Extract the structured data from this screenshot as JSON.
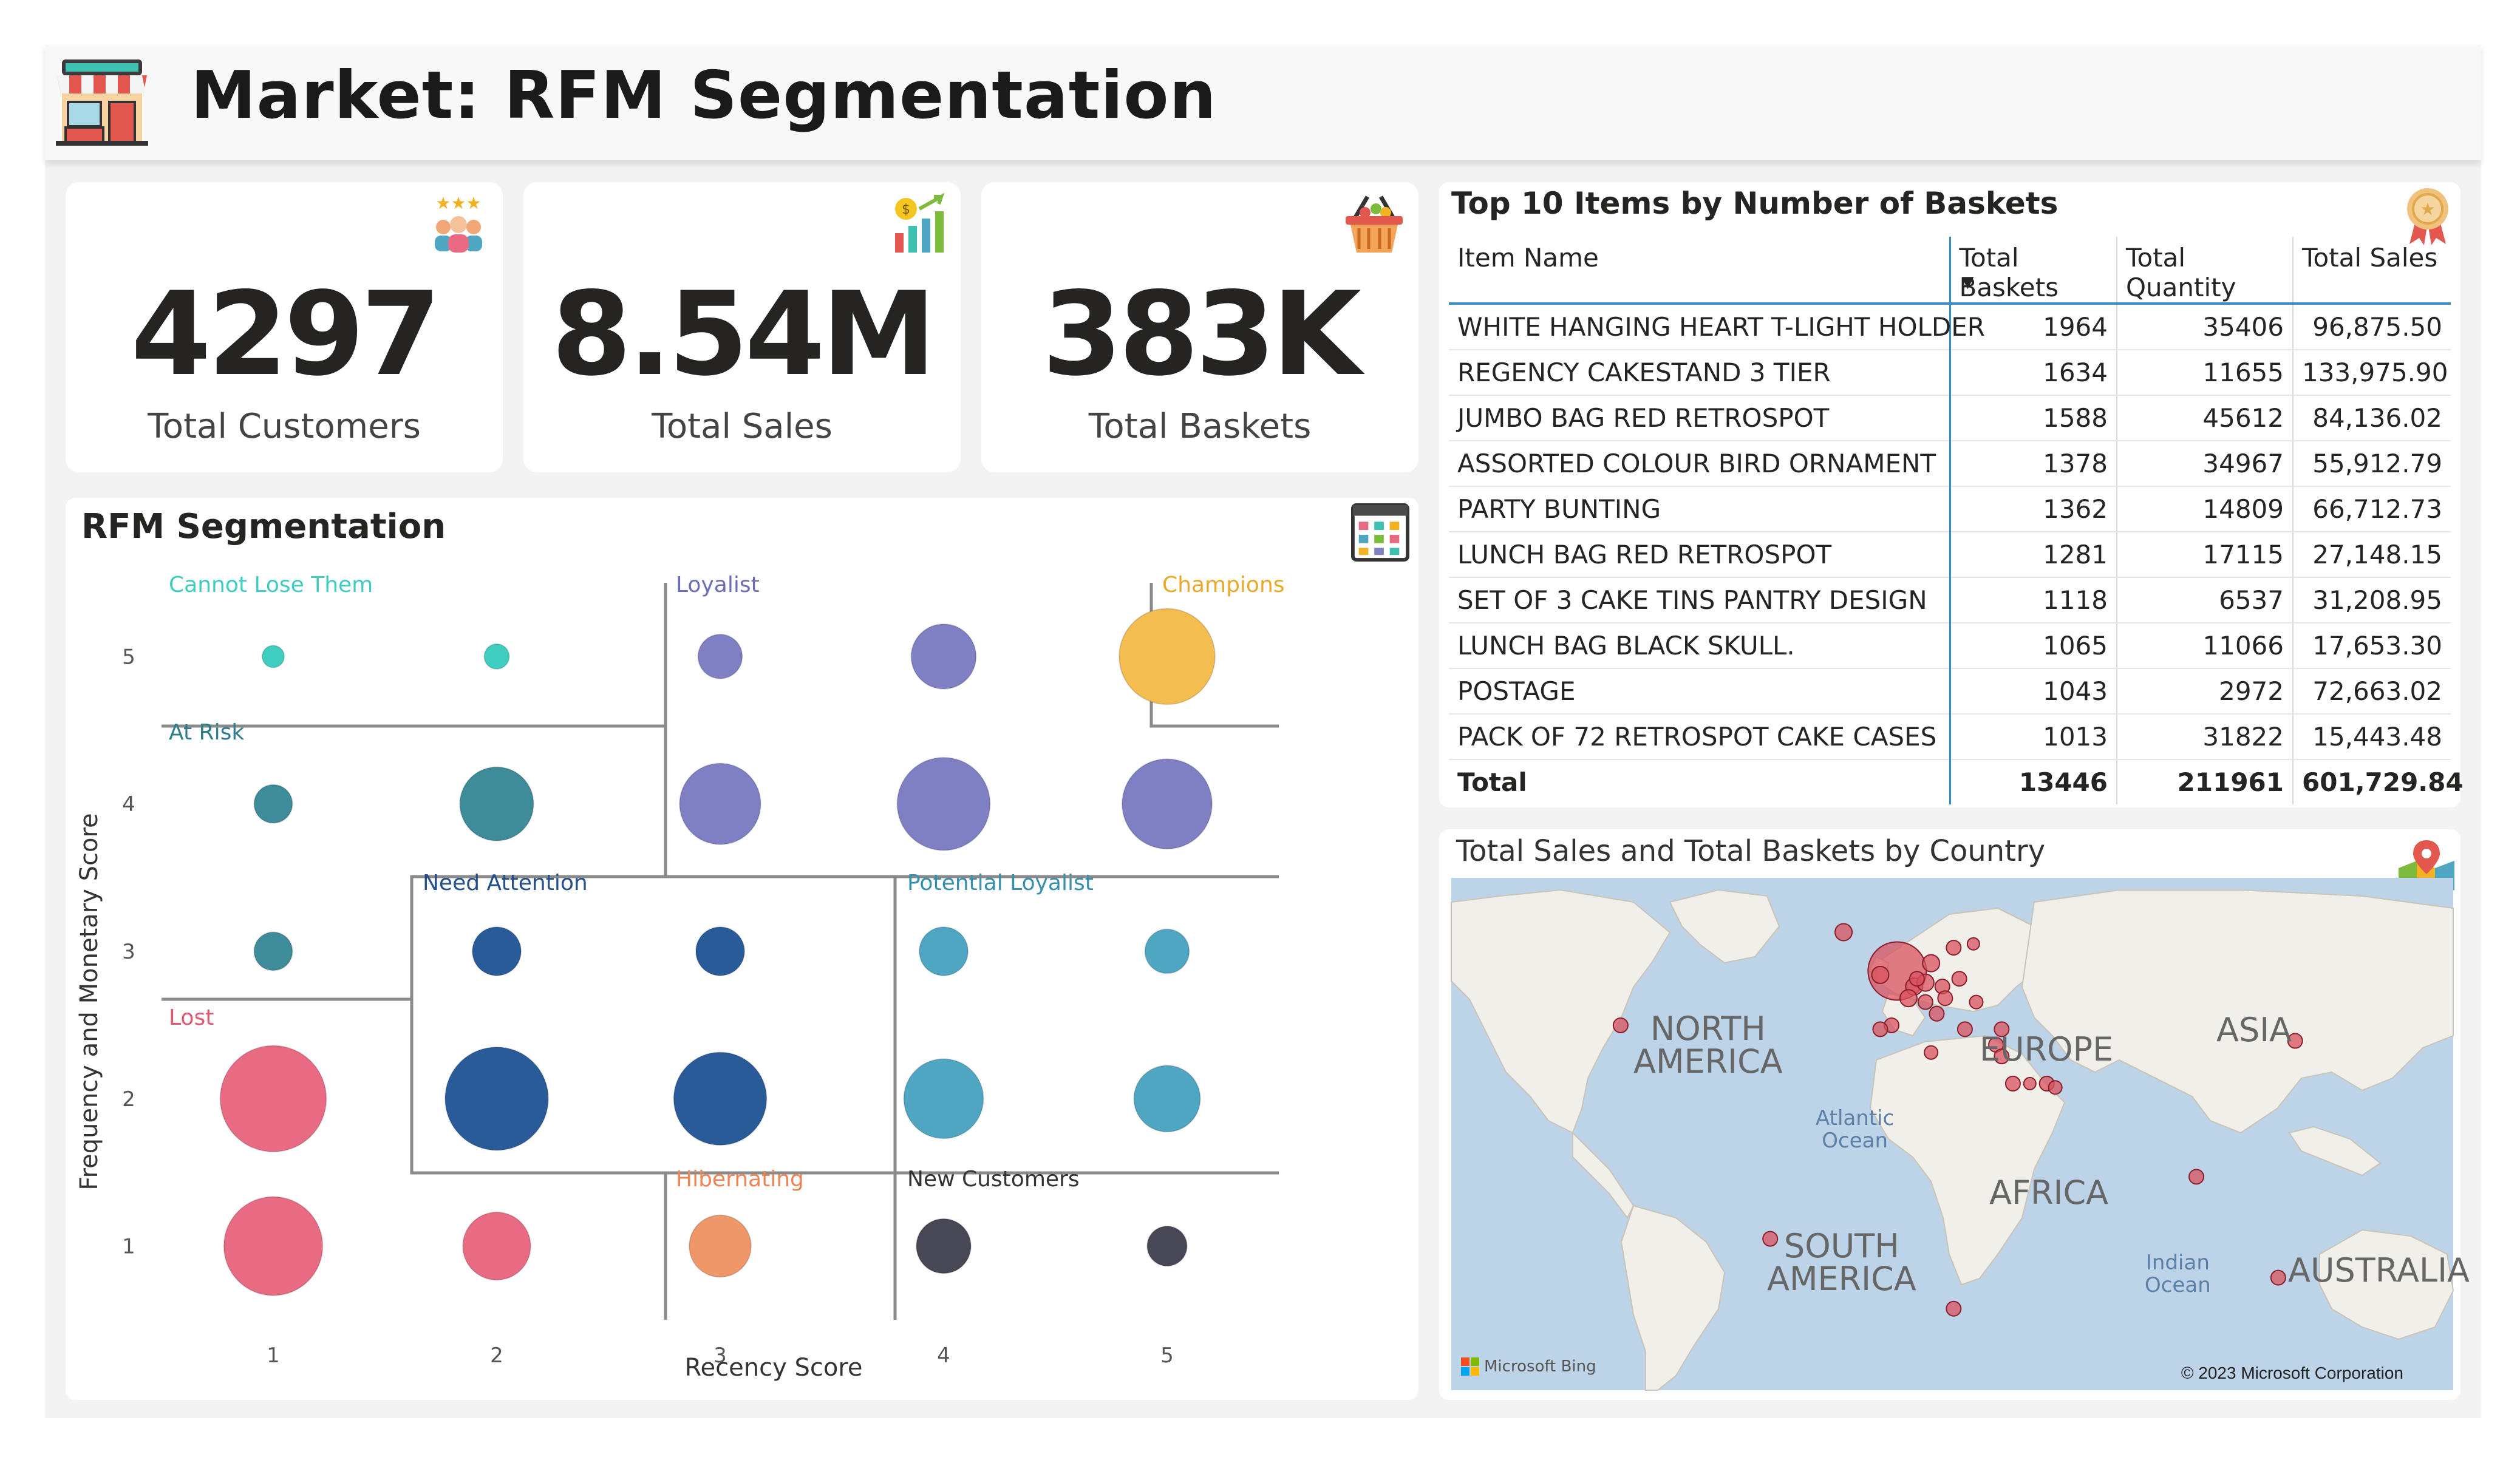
{
  "header": {
    "title": "Market: RFM Segmentation"
  },
  "kpis": [
    {
      "value": "4297",
      "label": "Total Customers",
      "icon": "customers-rating-icon"
    },
    {
      "value": "8.54M",
      "label": "Total Sales",
      "icon": "sales-chart-icon"
    },
    {
      "value": "383K",
      "label": "Total Baskets",
      "icon": "basket-icon"
    }
  ],
  "rfm": {
    "title": "RFM Segmentation",
    "segments": {
      "cannot_lose": "Cannot Lose Them",
      "loyalist": "Loyalist",
      "champions": "Champions",
      "at_risk": "At Risk",
      "need_attention": "Need Attention",
      "potential_loyalist": "Potential Loyalist",
      "lost": "Lost",
      "hibernating": "Hibernating",
      "new_customers": "New Customers"
    }
  },
  "chart_data": {
    "type": "scatter",
    "title": "RFM Segmentation",
    "xlabel": "Recency Score",
    "ylabel": "Frequency and Monetary Score",
    "xlim": [
      0.5,
      5.5
    ],
    "ylim": [
      0.5,
      5.5
    ],
    "x_ticks": [
      "1",
      "2",
      "3",
      "4",
      "5"
    ],
    "y_ticks": [
      "1",
      "2",
      "3",
      "4",
      "5"
    ],
    "colors": {
      "cannot_lose": "#3ecdbf",
      "loyalist": "#7f7fc4",
      "champions": "#f4bd50",
      "at_risk": "#3e8b99",
      "need_attention": "#2a5b99",
      "potential_loyalist": "#4fa6c3",
      "lost": "#e96b83",
      "hibernating": "#f0976a",
      "new_customers": "#474756"
    },
    "points": [
      {
        "x": 1,
        "y": 5,
        "size": 0.15,
        "segment": "cannot_lose"
      },
      {
        "x": 2,
        "y": 5,
        "size": 0.17,
        "segment": "cannot_lose"
      },
      {
        "x": 3,
        "y": 5,
        "size": 0.3,
        "segment": "loyalist"
      },
      {
        "x": 4,
        "y": 5,
        "size": 0.44,
        "segment": "loyalist"
      },
      {
        "x": 5,
        "y": 5,
        "size": 0.65,
        "segment": "champions"
      },
      {
        "x": 1,
        "y": 4,
        "size": 0.26,
        "segment": "at_risk"
      },
      {
        "x": 2,
        "y": 4,
        "size": 0.5,
        "segment": "at_risk"
      },
      {
        "x": 3,
        "y": 4,
        "size": 0.55,
        "segment": "loyalist"
      },
      {
        "x": 4,
        "y": 4,
        "size": 0.63,
        "segment": "loyalist"
      },
      {
        "x": 5,
        "y": 4,
        "size": 0.61,
        "segment": "loyalist"
      },
      {
        "x": 1,
        "y": 3,
        "size": 0.26,
        "segment": "at_risk"
      },
      {
        "x": 2,
        "y": 3,
        "size": 0.33,
        "segment": "need_attention"
      },
      {
        "x": 3,
        "y": 3,
        "size": 0.33,
        "segment": "need_attention"
      },
      {
        "x": 4,
        "y": 3,
        "size": 0.33,
        "segment": "potential_loyalist"
      },
      {
        "x": 5,
        "y": 3,
        "size": 0.3,
        "segment": "potential_loyalist"
      },
      {
        "x": 1,
        "y": 2,
        "size": 0.72,
        "segment": "lost"
      },
      {
        "x": 2,
        "y": 2,
        "size": 0.7,
        "segment": "need_attention"
      },
      {
        "x": 3,
        "y": 2,
        "size": 0.63,
        "segment": "need_attention"
      },
      {
        "x": 4,
        "y": 2,
        "size": 0.54,
        "segment": "potential_loyalist"
      },
      {
        "x": 5,
        "y": 2,
        "size": 0.45,
        "segment": "potential_loyalist"
      },
      {
        "x": 1,
        "y": 1,
        "size": 0.67,
        "segment": "lost"
      },
      {
        "x": 2,
        "y": 1,
        "size": 0.46,
        "segment": "lost"
      },
      {
        "x": 3,
        "y": 1,
        "size": 0.42,
        "segment": "hibernating"
      },
      {
        "x": 4,
        "y": 1,
        "size": 0.37,
        "segment": "new_customers"
      },
      {
        "x": 5,
        "y": 1,
        "size": 0.27,
        "segment": "new_customers"
      }
    ]
  },
  "top_items": {
    "title": "Top 10 Items by Number of Baskets",
    "columns": [
      "Item Name",
      "Total Baskets",
      "Total Quantity",
      "Total Sales"
    ],
    "rows": [
      [
        "WHITE HANGING HEART T-LIGHT HOLDER",
        "1964",
        "35406",
        "96,875.50"
      ],
      [
        "REGENCY CAKESTAND 3 TIER",
        "1634",
        "11655",
        "133,975.90"
      ],
      [
        "JUMBO BAG RED RETROSPOT",
        "1588",
        "45612",
        "84,136.02"
      ],
      [
        "ASSORTED COLOUR BIRD ORNAMENT",
        "1378",
        "34967",
        "55,912.79"
      ],
      [
        "PARTY BUNTING",
        "1362",
        "14809",
        "66,712.73"
      ],
      [
        "LUNCH BAG RED RETROSPOT",
        "1281",
        "17115",
        "27,148.15"
      ],
      [
        "SET OF 3 CAKE TINS PANTRY DESIGN",
        "1118",
        "6537",
        "31,208.95"
      ],
      [
        "LUNCH BAG BLACK SKULL.",
        "1065",
        "11066",
        "17,653.30"
      ],
      [
        "POSTAGE",
        "1043",
        "2972",
        "72,663.02"
      ],
      [
        "PACK OF 72 RETROSPOT CAKE CASES",
        "1013",
        "31822",
        "15,443.48"
      ]
    ],
    "total": [
      "Total",
      "13446",
      "211961",
      "601,729.84"
    ]
  },
  "map": {
    "title": "Total Sales and Total Baskets by Country",
    "labels": {
      "north_america": "NORTH\nAMERICA",
      "europe": "EUROPE",
      "asia": "ASIA",
      "africa": "AFRICA",
      "south_america": "SOUTH\nAMERICA",
      "australia": "AUSTRALIA",
      "atlantic": "Atlantic\nOcean",
      "indian": "Indian\nOcean"
    },
    "bing": "Microsoft Bing",
    "copyright": "© 2023 Microsoft Corporation",
    "marker_color": "#d9535f"
  }
}
